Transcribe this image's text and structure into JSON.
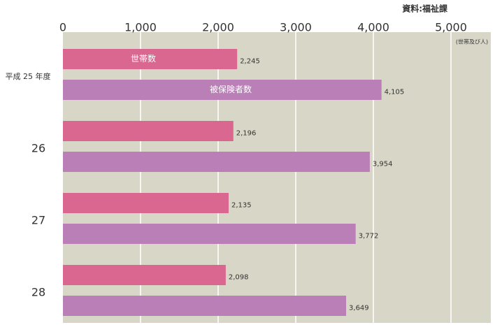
{
  "chart_data": {
    "type": "bar",
    "orientation": "horizontal",
    "source": "資料:福祉課",
    "unit": "(世帯及び人)",
    "categories": [
      "平成 25 年度",
      "26",
      "27",
      "28"
    ],
    "series": [
      {
        "name": "世帯数",
        "color": "#d9678f",
        "values": [
          2245,
          2196,
          2135,
          2098
        ],
        "value_labels": [
          "2,245",
          "2,196",
          "2,135",
          "2,098"
        ]
      },
      {
        "name": "被保険者数",
        "color": "#b97fb6",
        "values": [
          4105,
          3954,
          3772,
          3649
        ],
        "value_labels": [
          "4,105",
          "3,954",
          "3,772",
          "3,649"
        ]
      }
    ],
    "xlim": [
      0,
      5000
    ],
    "xticks": [
      0,
      {
        "value": 1000,
        "label": "1,000"
      },
      {
        "value": 2000,
        "label": "2,000"
      },
      {
        "value": 3000,
        "label": "3,000"
      },
      {
        "value": 4000,
        "label": "4,000"
      },
      {
        "value": 5000,
        "label": "5,000"
      }
    ],
    "grid": true
  }
}
